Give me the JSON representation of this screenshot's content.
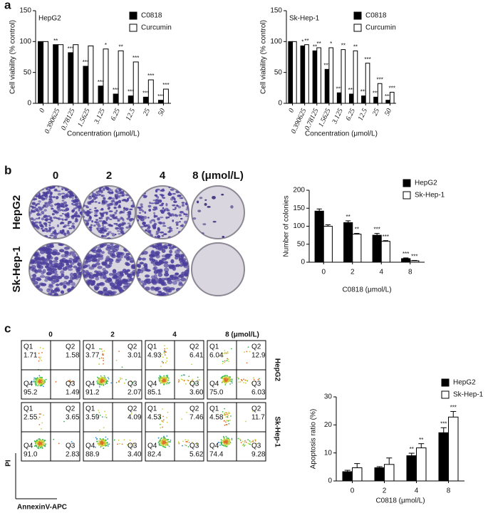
{
  "panel_labels": [
    "a",
    "b",
    "c"
  ],
  "chart_data": [
    {
      "type": "bar",
      "title": "HepG2",
      "categories": [
        "0",
        "0.390625",
        "0.78125",
        "1.5625",
        "3.125",
        "6.25",
        "12.5",
        "25",
        "50"
      ],
      "series": [
        {
          "name": "C0818",
          "color": "#000000",
          "values": [
            100,
            95,
            82,
            60,
            28,
            15,
            12,
            10,
            5
          ],
          "significance": [
            null,
            "**",
            "***",
            "***",
            "***",
            "***",
            "***",
            "***",
            "***"
          ]
        },
        {
          "name": "Curcumin",
          "color": "#ffffff",
          "values": [
            100,
            95,
            95,
            93,
            88,
            85,
            67,
            38,
            23
          ],
          "significance": [
            null,
            null,
            null,
            null,
            "*",
            "**",
            "***",
            "***",
            "***"
          ]
        }
      ],
      "ylim": [
        0,
        150
      ],
      "yticks": [
        0,
        50,
        100,
        150
      ],
      "y_label": "Cell viability (% control)",
      "x_label": "Concentration (μmol/L)"
    },
    {
      "type": "bar",
      "title": "Sk-Hep-1",
      "categories": [
        "0",
        "0.390625",
        "0.78125",
        "1.5625",
        "3.125",
        "6.25",
        "12.5",
        "25",
        "50"
      ],
      "series": [
        {
          "name": "C0818",
          "color": "#000000",
          "values": [
            100,
            93,
            85,
            55,
            17,
            15,
            12,
            10,
            5
          ],
          "significance": [
            null,
            "*",
            "**",
            "***",
            "***",
            "***",
            "***",
            "***",
            "***"
          ]
        },
        {
          "name": "Curcumin",
          "color": "#ffffff",
          "values": [
            100,
            95,
            90,
            90,
            87,
            85,
            65,
            32,
            18
          ],
          "significance": [
            null,
            "**",
            "**",
            "*",
            "**",
            "**",
            "***",
            "***",
            "***"
          ]
        }
      ],
      "ylim": [
        0,
        150
      ],
      "yticks": [
        0,
        50,
        100,
        150
      ],
      "y_label": "Cell viability (% control)",
      "x_label": "Concentration (μmol/L)"
    },
    {
      "type": "bar",
      "categories": [
        "0",
        "2",
        "4",
        "8"
      ],
      "series": [
        {
          "name": "HepG2",
          "color": "#000000",
          "values": [
            142,
            110,
            75,
            10
          ],
          "errors": [
            6,
            5,
            5,
            2
          ],
          "significance": [
            null,
            "**",
            "***",
            "***"
          ]
        },
        {
          "name": "Sk-Hep-1",
          "color": "#ffffff",
          "values": [
            100,
            78,
            58,
            4
          ],
          "errors": [
            4,
            2,
            2,
            1
          ],
          "significance": [
            null,
            "**",
            "***",
            "***"
          ]
        }
      ],
      "ylim": [
        0,
        200
      ],
      "yticks": [
        0,
        50,
        100,
        150,
        200
      ],
      "y_label": "Number of colonies",
      "x_label": "C0818 (μmol/L)"
    },
    {
      "type": "bar",
      "categories": [
        "0",
        "2",
        "4",
        "8"
      ],
      "series": [
        {
          "name": "HepG2",
          "color": "#000000",
          "values": [
            3.3,
            4.7,
            9,
            17.2
          ],
          "errors": [
            0.5,
            0.4,
            0.9,
            1.8
          ],
          "significance": [
            null,
            null,
            "**",
            "***"
          ]
        },
        {
          "name": "Sk-Hep-1",
          "color": "#ffffff",
          "values": [
            4.7,
            5.9,
            11.8,
            22.8
          ],
          "errors": [
            1.5,
            2.3,
            1.5,
            2
          ],
          "significance": [
            null,
            null,
            "**",
            "***"
          ]
        }
      ],
      "ylim": [
        0,
        30
      ],
      "yticks": [
        0,
        10,
        20,
        30
      ],
      "y_label": "Apoptosis ratio (%)",
      "x_label": "C0818 (μmol/L)"
    }
  ],
  "colony_assay": {
    "doses": [
      "0",
      "2",
      "4",
      "8 (μmol/L)"
    ],
    "rows": [
      "HepG2",
      "Sk-Hep-1"
    ]
  },
  "flow_cytometry": {
    "doses": [
      "0",
      "2",
      "4",
      "8 (μmol/L)"
    ],
    "quadrant_labels": [
      "Q1",
      "Q2",
      "Q3",
      "Q4"
    ],
    "rows": [
      {
        "name": "HepG2",
        "plots": [
          {
            "values": [
              "1.71",
              "1.58",
              "1.49",
              "95.2"
            ]
          },
          {
            "values": [
              "3.77",
              "3.01",
              "2.07",
              "91.2"
            ]
          },
          {
            "values": [
              "4.93",
              "6.41",
              "3.60",
              "85.1"
            ]
          },
          {
            "values": [
              "6.04",
              "12.9",
              "6.03",
              "75.0"
            ]
          }
        ]
      },
      {
        "name": "Sk-Hep-1",
        "plots": [
          {
            "values": [
              "2.55",
              "3.65",
              "2.83",
              "91.0"
            ]
          },
          {
            "values": [
              "3.59",
              "4.09",
              "3.40",
              "88.9"
            ]
          },
          {
            "values": [
              "4.53",
              "7.46",
              "5.62",
              "82.4"
            ]
          },
          {
            "values": [
              "4.58",
              "11.7",
              "9.28",
              "74.4"
            ]
          }
        ]
      }
    ],
    "y_label": "PI",
    "x_label": "AnnexinV-APC"
  }
}
